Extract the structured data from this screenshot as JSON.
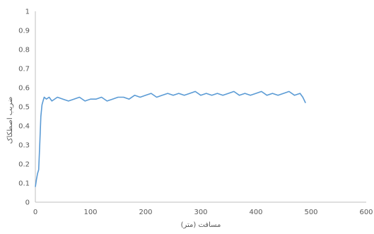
{
  "chart_data": {
    "type": "line",
    "title": "",
    "xlabel": "مسافت (متر)",
    "ylabel": "ضریب اصطکاک",
    "xlim": [
      0,
      600
    ],
    "ylim": [
      0,
      1
    ],
    "x_ticks": [
      0,
      100,
      200,
      300,
      400,
      500,
      600
    ],
    "y_ticks": [
      0,
      0.1,
      0.2,
      0.3,
      0.4,
      0.5,
      0.6,
      0.7,
      0.8,
      0.9,
      1
    ],
    "grid": false,
    "legend": "none",
    "series": [
      {
        "color": "#5b9bd5",
        "x": [
          0,
          2,
          4,
          6,
          8,
          10,
          12,
          14,
          16,
          20,
          25,
          30,
          40,
          50,
          60,
          70,
          80,
          90,
          100,
          110,
          120,
          130,
          140,
          150,
          160,
          170,
          180,
          190,
          200,
          210,
          220,
          230,
          240,
          250,
          260,
          270,
          280,
          290,
          300,
          310,
          320,
          330,
          340,
          350,
          360,
          370,
          380,
          390,
          400,
          410,
          420,
          430,
          440,
          450,
          460,
          470,
          480,
          485,
          490
        ],
        "y": [
          0.08,
          0.12,
          0.15,
          0.17,
          0.3,
          0.45,
          0.51,
          0.53,
          0.55,
          0.54,
          0.55,
          0.53,
          0.55,
          0.54,
          0.53,
          0.54,
          0.55,
          0.53,
          0.54,
          0.54,
          0.55,
          0.53,
          0.54,
          0.55,
          0.55,
          0.54,
          0.56,
          0.55,
          0.56,
          0.57,
          0.55,
          0.56,
          0.57,
          0.56,
          0.57,
          0.56,
          0.57,
          0.58,
          0.56,
          0.57,
          0.56,
          0.57,
          0.56,
          0.57,
          0.58,
          0.56,
          0.57,
          0.56,
          0.57,
          0.58,
          0.56,
          0.57,
          0.56,
          0.57,
          0.58,
          0.56,
          0.57,
          0.55,
          0.52
        ]
      }
    ]
  }
}
